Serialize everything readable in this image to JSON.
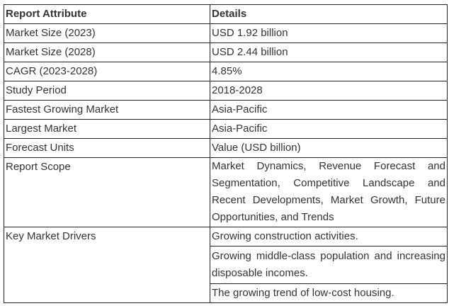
{
  "headers": [
    "Report Attribute",
    "Details"
  ],
  "rows": [
    {
      "attr": "Market Size (2023)",
      "detail": "USD 1.92 billion"
    },
    {
      "attr": "Market Size (2028)",
      "detail": "USD 2.44 billion"
    },
    {
      "attr": "CAGR (2023-2028)",
      "detail": "4.85%"
    },
    {
      "attr": "Study Period",
      "detail": "2018-2028"
    },
    {
      "attr": "Fastest Growing Market",
      "detail": "Asia-Pacific"
    },
    {
      "attr": "Largest Market",
      "detail": "Asia-Pacific"
    },
    {
      "attr": "Forecast Units",
      "detail": "Value (USD billion)"
    },
    {
      "attr": "Report Scope",
      "detail": "Market Dynamics, Revenue Forecast and Segmentation, Competitive Landscape and Recent Developments, Market Growth, Future Opportunities, and Trends"
    }
  ],
  "drivers": {
    "attr": "Key Market Drivers",
    "items": [
      "Growing construction activities.",
      "Growing middle-class population and increasing disposable incomes.",
      "The growing trend of low-cost housing."
    ]
  }
}
